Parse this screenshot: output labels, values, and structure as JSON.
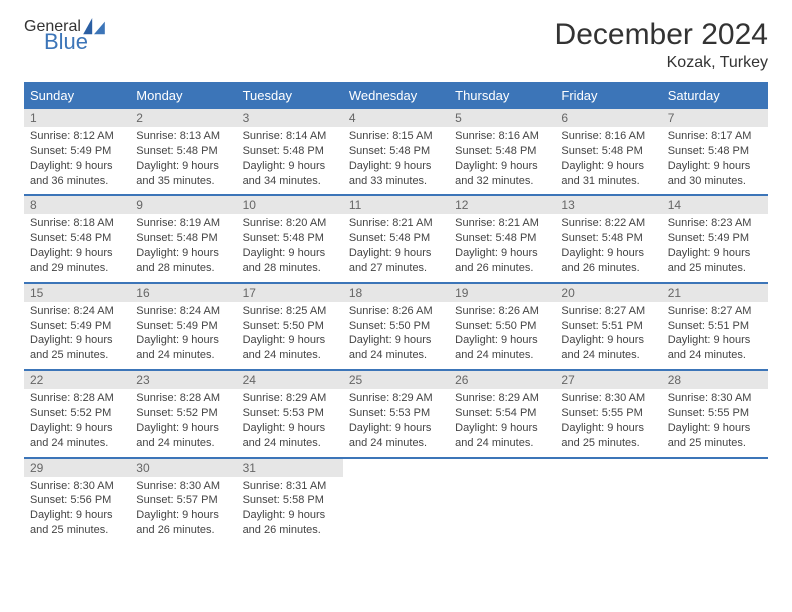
{
  "logo": {
    "word1": "General",
    "word2": "Blue"
  },
  "title": "December 2024",
  "location": "Kozak, Turkey",
  "colors": {
    "header_bg": "#3c75b8",
    "header_text": "#ffffff",
    "daynum_bg": "#e6e6e6",
    "daynum_text": "#666666",
    "body_text": "#444444",
    "border": "#3c75b8"
  },
  "weekdays": [
    "Sunday",
    "Monday",
    "Tuesday",
    "Wednesday",
    "Thursday",
    "Friday",
    "Saturday"
  ],
  "days": [
    {
      "n": "1",
      "sunrise": "Sunrise: 8:12 AM",
      "sunset": "Sunset: 5:49 PM",
      "day1": "Daylight: 9 hours",
      "day2": "and 36 minutes."
    },
    {
      "n": "2",
      "sunrise": "Sunrise: 8:13 AM",
      "sunset": "Sunset: 5:48 PM",
      "day1": "Daylight: 9 hours",
      "day2": "and 35 minutes."
    },
    {
      "n": "3",
      "sunrise": "Sunrise: 8:14 AM",
      "sunset": "Sunset: 5:48 PM",
      "day1": "Daylight: 9 hours",
      "day2": "and 34 minutes."
    },
    {
      "n": "4",
      "sunrise": "Sunrise: 8:15 AM",
      "sunset": "Sunset: 5:48 PM",
      "day1": "Daylight: 9 hours",
      "day2": "and 33 minutes."
    },
    {
      "n": "5",
      "sunrise": "Sunrise: 8:16 AM",
      "sunset": "Sunset: 5:48 PM",
      "day1": "Daylight: 9 hours",
      "day2": "and 32 minutes."
    },
    {
      "n": "6",
      "sunrise": "Sunrise: 8:16 AM",
      "sunset": "Sunset: 5:48 PM",
      "day1": "Daylight: 9 hours",
      "day2": "and 31 minutes."
    },
    {
      "n": "7",
      "sunrise": "Sunrise: 8:17 AM",
      "sunset": "Sunset: 5:48 PM",
      "day1": "Daylight: 9 hours",
      "day2": "and 30 minutes."
    },
    {
      "n": "8",
      "sunrise": "Sunrise: 8:18 AM",
      "sunset": "Sunset: 5:48 PM",
      "day1": "Daylight: 9 hours",
      "day2": "and 29 minutes."
    },
    {
      "n": "9",
      "sunrise": "Sunrise: 8:19 AM",
      "sunset": "Sunset: 5:48 PM",
      "day1": "Daylight: 9 hours",
      "day2": "and 28 minutes."
    },
    {
      "n": "10",
      "sunrise": "Sunrise: 8:20 AM",
      "sunset": "Sunset: 5:48 PM",
      "day1": "Daylight: 9 hours",
      "day2": "and 28 minutes."
    },
    {
      "n": "11",
      "sunrise": "Sunrise: 8:21 AM",
      "sunset": "Sunset: 5:48 PM",
      "day1": "Daylight: 9 hours",
      "day2": "and 27 minutes."
    },
    {
      "n": "12",
      "sunrise": "Sunrise: 8:21 AM",
      "sunset": "Sunset: 5:48 PM",
      "day1": "Daylight: 9 hours",
      "day2": "and 26 minutes."
    },
    {
      "n": "13",
      "sunrise": "Sunrise: 8:22 AM",
      "sunset": "Sunset: 5:48 PM",
      "day1": "Daylight: 9 hours",
      "day2": "and 26 minutes."
    },
    {
      "n": "14",
      "sunrise": "Sunrise: 8:23 AM",
      "sunset": "Sunset: 5:49 PM",
      "day1": "Daylight: 9 hours",
      "day2": "and 25 minutes."
    },
    {
      "n": "15",
      "sunrise": "Sunrise: 8:24 AM",
      "sunset": "Sunset: 5:49 PM",
      "day1": "Daylight: 9 hours",
      "day2": "and 25 minutes."
    },
    {
      "n": "16",
      "sunrise": "Sunrise: 8:24 AM",
      "sunset": "Sunset: 5:49 PM",
      "day1": "Daylight: 9 hours",
      "day2": "and 24 minutes."
    },
    {
      "n": "17",
      "sunrise": "Sunrise: 8:25 AM",
      "sunset": "Sunset: 5:50 PM",
      "day1": "Daylight: 9 hours",
      "day2": "and 24 minutes."
    },
    {
      "n": "18",
      "sunrise": "Sunrise: 8:26 AM",
      "sunset": "Sunset: 5:50 PM",
      "day1": "Daylight: 9 hours",
      "day2": "and 24 minutes."
    },
    {
      "n": "19",
      "sunrise": "Sunrise: 8:26 AM",
      "sunset": "Sunset: 5:50 PM",
      "day1": "Daylight: 9 hours",
      "day2": "and 24 minutes."
    },
    {
      "n": "20",
      "sunrise": "Sunrise: 8:27 AM",
      "sunset": "Sunset: 5:51 PM",
      "day1": "Daylight: 9 hours",
      "day2": "and 24 minutes."
    },
    {
      "n": "21",
      "sunrise": "Sunrise: 8:27 AM",
      "sunset": "Sunset: 5:51 PM",
      "day1": "Daylight: 9 hours",
      "day2": "and 24 minutes."
    },
    {
      "n": "22",
      "sunrise": "Sunrise: 8:28 AM",
      "sunset": "Sunset: 5:52 PM",
      "day1": "Daylight: 9 hours",
      "day2": "and 24 minutes."
    },
    {
      "n": "23",
      "sunrise": "Sunrise: 8:28 AM",
      "sunset": "Sunset: 5:52 PM",
      "day1": "Daylight: 9 hours",
      "day2": "and 24 minutes."
    },
    {
      "n": "24",
      "sunrise": "Sunrise: 8:29 AM",
      "sunset": "Sunset: 5:53 PM",
      "day1": "Daylight: 9 hours",
      "day2": "and 24 minutes."
    },
    {
      "n": "25",
      "sunrise": "Sunrise: 8:29 AM",
      "sunset": "Sunset: 5:53 PM",
      "day1": "Daylight: 9 hours",
      "day2": "and 24 minutes."
    },
    {
      "n": "26",
      "sunrise": "Sunrise: 8:29 AM",
      "sunset": "Sunset: 5:54 PM",
      "day1": "Daylight: 9 hours",
      "day2": "and 24 minutes."
    },
    {
      "n": "27",
      "sunrise": "Sunrise: 8:30 AM",
      "sunset": "Sunset: 5:55 PM",
      "day1": "Daylight: 9 hours",
      "day2": "and 25 minutes."
    },
    {
      "n": "28",
      "sunrise": "Sunrise: 8:30 AM",
      "sunset": "Sunset: 5:55 PM",
      "day1": "Daylight: 9 hours",
      "day2": "and 25 minutes."
    },
    {
      "n": "29",
      "sunrise": "Sunrise: 8:30 AM",
      "sunset": "Sunset: 5:56 PM",
      "day1": "Daylight: 9 hours",
      "day2": "and 25 minutes."
    },
    {
      "n": "30",
      "sunrise": "Sunrise: 8:30 AM",
      "sunset": "Sunset: 5:57 PM",
      "day1": "Daylight: 9 hours",
      "day2": "and 26 minutes."
    },
    {
      "n": "31",
      "sunrise": "Sunrise: 8:31 AM",
      "sunset": "Sunset: 5:58 PM",
      "day1": "Daylight: 9 hours",
      "day2": "and 26 minutes."
    }
  ]
}
